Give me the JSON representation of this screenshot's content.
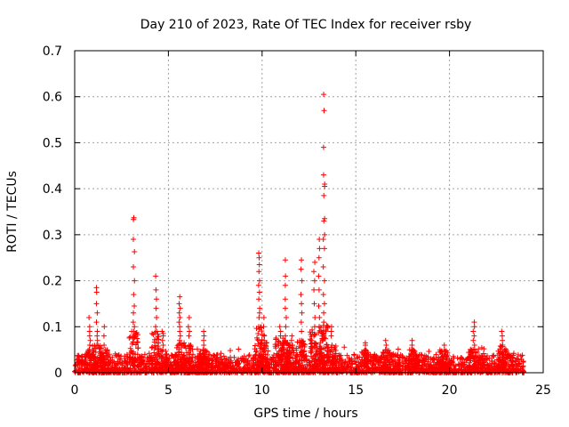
{
  "chart_data": {
    "type": "scatter",
    "title": "Day 210 of 2023, Rate Of TEC Index for receiver rsby",
    "xlabel": "GPS time / hours",
    "ylabel": "ROTI / TECUs",
    "xlim": [
      0,
      25
    ],
    "ylim": [
      0,
      0.7
    ],
    "xticks": [
      0,
      5,
      10,
      15,
      20,
      25
    ],
    "yticks": [
      0,
      0.1,
      0.2,
      0.3,
      0.4,
      0.5,
      0.6,
      0.7
    ],
    "xtick_labels": [
      "0",
      "5",
      "10",
      "15",
      "20",
      "25"
    ],
    "ytick_labels": [
      "0",
      "0.1",
      "0.2",
      "0.3",
      "0.4",
      "0.5",
      "0.6",
      "0.7"
    ],
    "grid": true,
    "marker": "+",
    "marker_color": "#ff0000",
    "baseline_range_hours": [
      0,
      24
    ],
    "baseline_typical_roti": [
      0.0,
      0.04
    ],
    "bursts": [
      {
        "time": 0.8,
        "values": [
          0.12,
          0.1,
          0.09,
          0.08,
          0.07,
          0.06,
          0.05
        ]
      },
      {
        "time": 1.2,
        "values": [
          0.185,
          0.175,
          0.15,
          0.13,
          0.11,
          0.09,
          0.08,
          0.07,
          0.06
        ]
      },
      {
        "time": 1.6,
        "values": [
          0.1,
          0.08,
          0.06,
          0.05
        ]
      },
      {
        "time": 3.15,
        "values": [
          0.337,
          0.333,
          0.29,
          0.263,
          0.23,
          0.2,
          0.17,
          0.145,
          0.13,
          0.11,
          0.1,
          0.09
        ]
      },
      {
        "time": 4.35,
        "values": [
          0.21,
          0.18,
          0.16,
          0.14,
          0.12,
          0.1,
          0.09
        ]
      },
      {
        "time": 4.7,
        "values": [
          0.09,
          0.085,
          0.08,
          0.07,
          0.06,
          0.05
        ]
      },
      {
        "time": 5.6,
        "values": [
          0.165,
          0.15,
          0.14,
          0.13,
          0.12,
          0.11,
          0.1,
          0.09,
          0.08,
          0.07
        ]
      },
      {
        "time": 6.1,
        "values": [
          0.12,
          0.1,
          0.09,
          0.08,
          0.06
        ]
      },
      {
        "time": 6.9,
        "values": [
          0.09,
          0.08,
          0.07,
          0.06,
          0.05
        ]
      },
      {
        "time": 9.85,
        "values": [
          0.26,
          0.25,
          0.235,
          0.22,
          0.2,
          0.19,
          0.175,
          0.16,
          0.14,
          0.13,
          0.12,
          0.1
        ]
      },
      {
        "time": 10.1,
        "values": [
          0.12,
          0.1,
          0.08,
          0.07
        ]
      },
      {
        "time": 10.95,
        "values": [
          0.1,
          0.09,
          0.08
        ]
      },
      {
        "time": 11.25,
        "values": [
          0.245,
          0.21,
          0.19,
          0.16,
          0.14,
          0.12,
          0.1,
          0.08,
          0.07
        ]
      },
      {
        "time": 11.6,
        "values": [
          0.08,
          0.07,
          0.06
        ]
      },
      {
        "time": 12.1,
        "values": [
          0.245,
          0.225,
          0.2,
          0.17,
          0.15,
          0.13,
          0.11,
          0.09,
          0.07
        ]
      },
      {
        "time": 12.8,
        "values": [
          0.24,
          0.22,
          0.2,
          0.18,
          0.15,
          0.12,
          0.1
        ]
      },
      {
        "time": 13.05,
        "values": [
          0.29,
          0.27,
          0.25,
          0.21,
          0.18,
          0.145,
          0.12,
          0.1
        ]
      },
      {
        "time": 13.3,
        "values": [
          0.605,
          0.57,
          0.49,
          0.43,
          0.41,
          0.405,
          0.385,
          0.335,
          0.33,
          0.3,
          0.29,
          0.27,
          0.23,
          0.2,
          0.17,
          0.15,
          0.13,
          0.11
        ]
      },
      {
        "time": 13.7,
        "values": [
          0.1,
          0.09,
          0.08,
          0.06
        ]
      },
      {
        "time": 15.5,
        "values": [
          0.065,
          0.06,
          0.05
        ]
      },
      {
        "time": 16.6,
        "values": [
          0.07,
          0.06,
          0.05
        ]
      },
      {
        "time": 18.0,
        "values": [
          0.07,
          0.06,
          0.05
        ]
      },
      {
        "time": 19.7,
        "values": [
          0.06,
          0.05
        ]
      },
      {
        "time": 21.3,
        "values": [
          0.11,
          0.1,
          0.09,
          0.08,
          0.07,
          0.06
        ]
      },
      {
        "time": 22.8,
        "values": [
          0.09,
          0.08,
          0.07,
          0.06
        ]
      }
    ]
  }
}
